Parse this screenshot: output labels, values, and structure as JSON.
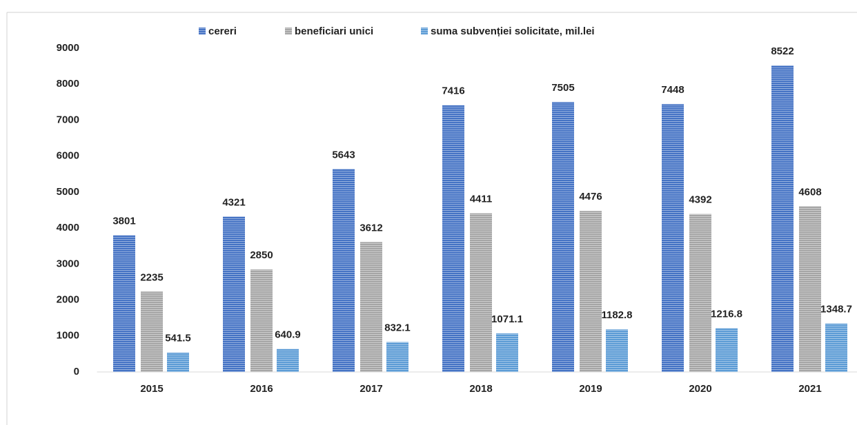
{
  "chart_data": {
    "type": "bar",
    "categories": [
      "2015",
      "2016",
      "2017",
      "2018",
      "2019",
      "2020",
      "2021"
    ],
    "series": [
      {
        "name": "cereri",
        "color": "#4472c4",
        "values": [
          3801,
          4321,
          5643,
          7416,
          7505,
          7448,
          8522
        ]
      },
      {
        "name": "beneficiari unici",
        "color": "#a5a5a5",
        "values": [
          2235,
          2850,
          3612,
          4411,
          4476,
          4392,
          4608
        ]
      },
      {
        "name": "suma subvenției solicitate, mil.lei",
        "color": "#5b9bd5",
        "values": [
          541.5,
          640.9,
          832.1,
          1071.1,
          1182.8,
          1216.8,
          1348.7
        ]
      }
    ],
    "ylim": [
      0,
      9000
    ],
    "yticks": [
      0,
      1000,
      2000,
      3000,
      4000,
      5000,
      6000,
      7000,
      8000,
      9000
    ],
    "legend": "top"
  }
}
